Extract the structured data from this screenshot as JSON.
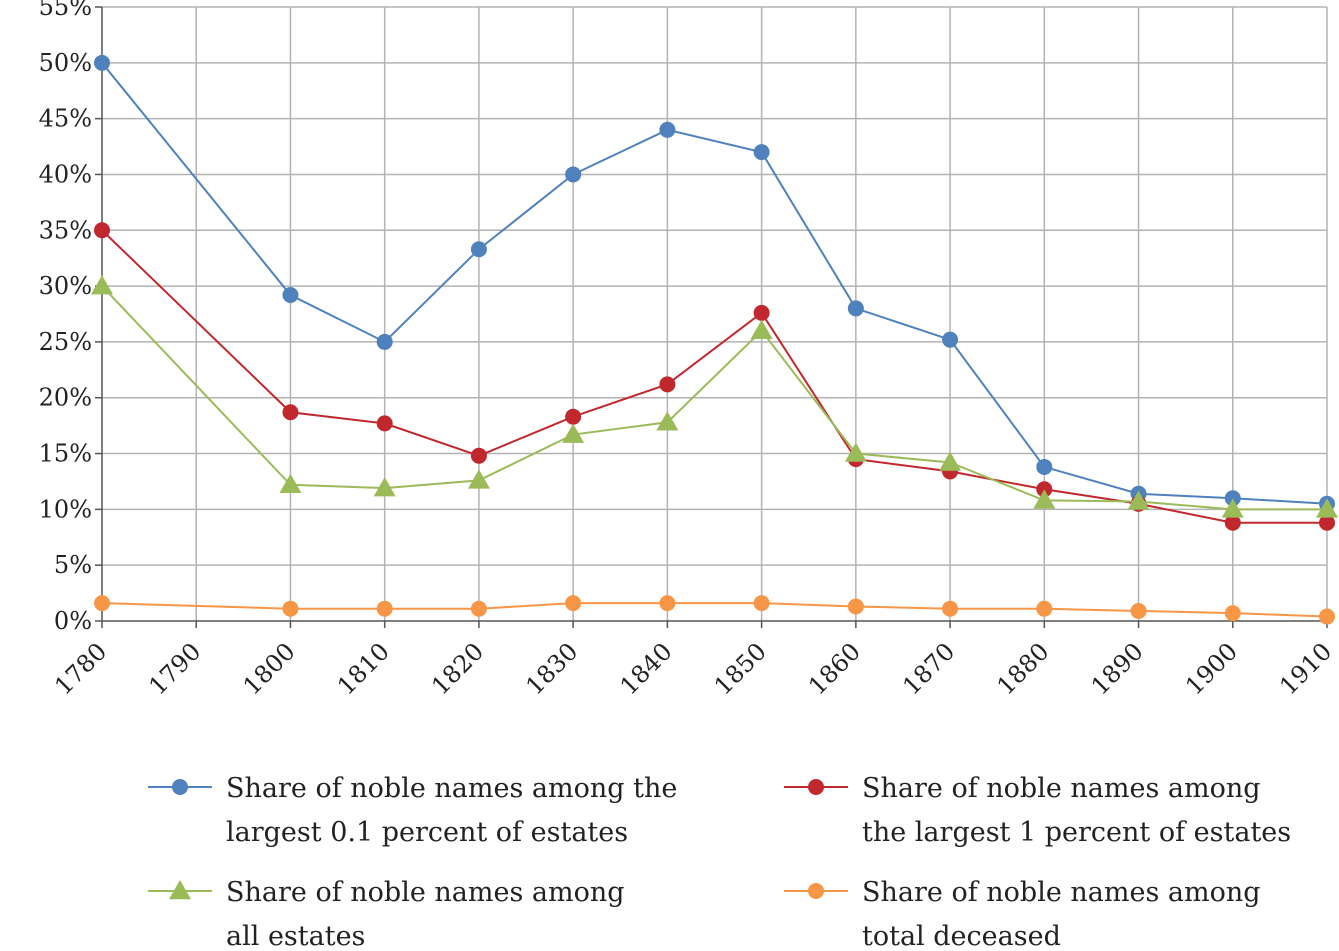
{
  "chart_data": {
    "type": "line",
    "x": [
      1780,
      1790,
      1800,
      1810,
      1820,
      1830,
      1840,
      1850,
      1860,
      1870,
      1880,
      1890,
      1900,
      1910
    ],
    "xticks": [
      "1780",
      "1790",
      "1800",
      "1810",
      "1820",
      "1830",
      "1840",
      "1850",
      "1860",
      "1870",
      "1880",
      "1890",
      "1900",
      "1910"
    ],
    "yticks": [
      "0%",
      "5%",
      "10%",
      "15%",
      "20%",
      "25%",
      "30%",
      "35%",
      "40%",
      "45%",
      "50%",
      "55%"
    ],
    "ylim": [
      0,
      55
    ],
    "xlim": [
      1780,
      1910
    ],
    "grid": true,
    "legend_position": "bottom",
    "series": [
      {
        "name_lines": [
          "Share of noble names among the",
          "largest 0.1 percent of estates"
        ],
        "color": "#4f81bd",
        "marker": "circle",
        "values": [
          50,
          null,
          29.2,
          25,
          33.3,
          40,
          44,
          42,
          28,
          25.2,
          13.8,
          11.4,
          11,
          10.5
        ]
      },
      {
        "name_lines": [
          "Share of noble names among",
          "the largest 1 percent of estates"
        ],
        "color": "#c0282d",
        "marker": "circle",
        "values": [
          35,
          null,
          18.7,
          17.7,
          14.8,
          18.3,
          21.2,
          27.6,
          14.5,
          13.4,
          11.8,
          10.5,
          8.8,
          8.8
        ]
      },
      {
        "name_lines": [
          "Share of noble names among",
          "all estates"
        ],
        "color": "#9bbb59",
        "marker": "triangle",
        "values": [
          30,
          null,
          12.2,
          11.9,
          12.6,
          16.7,
          17.8,
          26,
          15,
          14.2,
          10.8,
          10.7,
          10,
          10
        ]
      },
      {
        "name_lines": [
          "Share of noble names among",
          "total deceased"
        ],
        "color": "#f79646",
        "marker": "circle",
        "values": [
          1.6,
          null,
          1.1,
          1.1,
          1.1,
          1.6,
          1.6,
          1.6,
          1.3,
          1.1,
          1.1,
          0.9,
          0.7,
          0.4
        ]
      }
    ]
  }
}
